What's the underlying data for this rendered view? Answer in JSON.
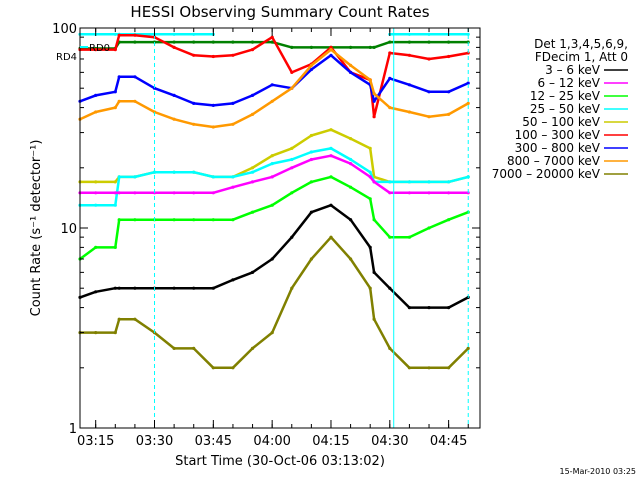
{
  "title": "HESSI Observing Summary Count Rates",
  "xlabel": "Start Time (30-Oct-06 03:13:02)",
  "ylabel": "Count Rate (s⁻¹ detector⁻¹)",
  "footer_stamp": "15-Mar-2010 03:25",
  "legend": {
    "header_lines": [
      "Det 1,3,4,5,6,9,",
      "FDecim 1, Att 0"
    ],
    "entries": [
      {
        "label": "3 – 6 keV",
        "color": "#000000"
      },
      {
        "label": "6 – 12 keV",
        "color": "#ff00ff"
      },
      {
        "label": "12 – 25 keV",
        "color": "#00ff00"
      },
      {
        "label": "25 – 50 keV",
        "color": "#00ffff"
      },
      {
        "label": "50 – 100 keV",
        "color": "#cccc00"
      },
      {
        "label": "100 – 300 keV",
        "color": "#ff0000"
      },
      {
        "label": "300 – 800 keV",
        "color": "#0000ff"
      },
      {
        "label": "800 – 7000 keV",
        "color": "#ff9900"
      },
      {
        "label": "7000 – 20000 keV",
        "color": "#808000"
      }
    ]
  },
  "chart_data": {
    "type": "line",
    "title": "HESSI Observing Summary Count Rates",
    "xlabel": "Start Time (30-Oct-06 03:13:02)",
    "ylabel": "Count Rate (s⁻¹ detector⁻¹)",
    "yscale": "log",
    "xlim": [
      "03:11",
      "04:53"
    ],
    "ylim": [
      1,
      100
    ],
    "x_ticks": [
      "03:15",
      "03:30",
      "03:45",
      "04:00",
      "04:15",
      "04:30",
      "04:45"
    ],
    "y_ticks": [
      "1",
      "10",
      "100"
    ],
    "grid": false,
    "legend_position": "right",
    "annotations": [
      {
        "text": "RD0",
        "color": "#00ffff"
      },
      {
        "text": "RD4",
        "color": "#008000"
      }
    ],
    "vertical_markers": [
      {
        "time": "03:11",
        "style": "solid",
        "color": "#00ffff"
      },
      {
        "time": "03:30",
        "style": "dashed",
        "color": "#00ffff"
      },
      {
        "time": "04:31",
        "style": "solid",
        "color": "#00ffff"
      },
      {
        "time": "04:50",
        "style": "dashed",
        "color": "#00ffff"
      }
    ],
    "x": [
      "03:11",
      "03:15",
      "03:20",
      "03:21",
      "03:25",
      "03:30",
      "03:35",
      "03:40",
      "03:45",
      "03:50",
      "03:55",
      "04:00",
      "04:05",
      "04:10",
      "04:15",
      "04:20",
      "04:25",
      "04:26",
      "04:30",
      "04:35",
      "04:40",
      "04:45",
      "04:50"
    ],
    "series": [
      {
        "name": "RD0",
        "color": "#00ffff",
        "values": [
          93,
          93,
          93,
          93,
          93,
          93,
          93,
          93,
          93,
          null,
          null,
          null,
          null,
          null,
          null,
          null,
          null,
          null,
          93,
          93,
          93,
          93,
          93
        ]
      },
      {
        "name": "RD4",
        "color": "#008000",
        "values": [
          79,
          79,
          79,
          85,
          85,
          85,
          85,
          85,
          85,
          85,
          85,
          85,
          80,
          80,
          80,
          80,
          80,
          80,
          85,
          85,
          85,
          85,
          85
        ]
      },
      {
        "name": "100 – 300 keV",
        "color": "#ff0000",
        "values": [
          78,
          78,
          78,
          92,
          92,
          90,
          80,
          73,
          72,
          73,
          78,
          90,
          60,
          66,
          80,
          60,
          55,
          36,
          75,
          73,
          70,
          72,
          75
        ]
      },
      {
        "name": "300 – 800 keV",
        "color": "#0000ff",
        "values": [
          43,
          46,
          48,
          57,
          57,
          50,
          46,
          42,
          41,
          42,
          46,
          52,
          50,
          62,
          73,
          60,
          52,
          43,
          56,
          52,
          48,
          48,
          53
        ]
      },
      {
        "name": "800 – 7000 keV",
        "color": "#ff9900",
        "values": [
          35,
          38,
          40,
          43,
          43,
          38,
          35,
          33,
          32,
          33,
          37,
          43,
          50,
          65,
          78,
          65,
          55,
          47,
          40,
          38,
          36,
          37,
          42
        ]
      },
      {
        "name": "50 – 100 keV",
        "color": "#cccc00",
        "values": [
          17,
          17,
          17,
          18,
          18,
          19,
          19,
          19,
          18,
          18,
          20,
          23,
          25,
          29,
          31,
          28,
          25,
          18,
          17,
          17,
          17,
          17,
          18
        ]
      },
      {
        "name": "25 – 50 keV",
        "color": "#00ffff",
        "values": [
          13,
          13,
          13,
          18,
          18,
          19,
          19,
          19,
          18,
          18,
          19,
          21,
          22,
          24,
          25,
          22,
          19,
          17,
          17,
          17,
          17,
          17,
          18
        ]
      },
      {
        "name": "6 – 12 keV",
        "color": "#ff00ff",
        "values": [
          15,
          15,
          15,
          15,
          15,
          15,
          15,
          15,
          15,
          16,
          17,
          18,
          20,
          22,
          23,
          21,
          18,
          17,
          15,
          15,
          15,
          15,
          15
        ]
      },
      {
        "name": "12 – 25 keV",
        "color": "#00ff00",
        "values": [
          7,
          8,
          8,
          11,
          11,
          11,
          11,
          11,
          11,
          11,
          12,
          13,
          15,
          17,
          18,
          16,
          14,
          11,
          9,
          9,
          10,
          11,
          12
        ]
      },
      {
        "name": "3 – 6 keV",
        "color": "#000000",
        "values": [
          4.5,
          4.8,
          5,
          5,
          5,
          5,
          5,
          5,
          5,
          5.5,
          6,
          7,
          9,
          12,
          13,
          11,
          8,
          6,
          5,
          4,
          4,
          4,
          4.5
        ]
      },
      {
        "name": "7000 – 20000 keV",
        "color": "#808000",
        "values": [
          3,
          3,
          3,
          3.5,
          3.5,
          3,
          2.5,
          2.5,
          2,
          2,
          2.5,
          3,
          5,
          7,
          9,
          7,
          5,
          3.5,
          2.5,
          2,
          2,
          2,
          2.5
        ]
      }
    ]
  }
}
